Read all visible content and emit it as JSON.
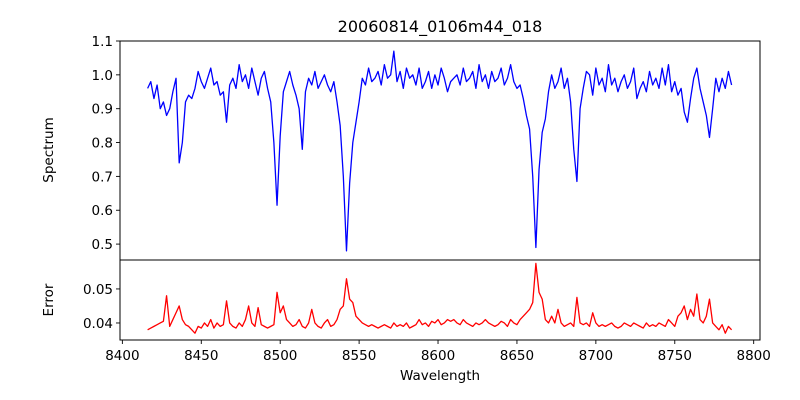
{
  "chart_data": {
    "type": "line",
    "title": "20060814_0106m44_018",
    "xlabel": "Wavelength",
    "xlim": [
      8398.5,
      8804
    ],
    "xticks": [
      8400,
      8450,
      8500,
      8550,
      8600,
      8650,
      8700,
      8750,
      8800
    ],
    "x_start": 8416,
    "x_step": 2,
    "panels": [
      {
        "name": "spectrum",
        "ylabel": "Spectrum",
        "ylim": [
          0.453,
          1.1
        ],
        "yticks": [
          0.5,
          0.6,
          0.7,
          0.8,
          0.9,
          1.0,
          1.1
        ],
        "ytick_labels": [
          "0.5",
          "0.6",
          "0.7",
          "0.8",
          "0.9",
          "1.0",
          "1.1"
        ],
        "color": "#0000ff",
        "values": [
          0.96,
          0.98,
          0.93,
          0.97,
          0.9,
          0.92,
          0.88,
          0.9,
          0.95,
          0.99,
          0.74,
          0.8,
          0.92,
          0.94,
          0.93,
          0.96,
          1.01,
          0.98,
          0.96,
          0.99,
          1.02,
          0.97,
          0.98,
          0.94,
          0.95,
          0.86,
          0.97,
          0.99,
          0.96,
          1.03,
          0.98,
          1.0,
          0.96,
          1.02,
          0.98,
          0.94,
          0.99,
          1.01,
          0.96,
          0.92,
          0.8,
          0.615,
          0.82,
          0.95,
          0.98,
          1.01,
          0.97,
          0.94,
          0.9,
          0.78,
          0.95,
          0.99,
          0.97,
          1.01,
          0.96,
          0.98,
          1.0,
          0.97,
          0.95,
          0.98,
          0.92,
          0.85,
          0.7,
          0.48,
          0.68,
          0.8,
          0.86,
          0.92,
          0.99,
          0.97,
          1.02,
          0.98,
          0.99,
          1.01,
          0.97,
          1.03,
          0.99,
          1.0,
          1.07,
          0.98,
          1.01,
          0.96,
          1.02,
          0.99,
          1.0,
          0.97,
          1.02,
          0.96,
          0.98,
          1.01,
          0.96,
          1.0,
          0.97,
          1.02,
          0.99,
          0.95,
          0.98,
          0.99,
          1.0,
          0.97,
          1.02,
          0.98,
          0.99,
          1.01,
          0.96,
          1.03,
          0.98,
          1.0,
          0.96,
          1.01,
          0.98,
          0.99,
          1.02,
          0.97,
          0.99,
          1.03,
          0.98,
          0.96,
          0.97,
          0.93,
          0.88,
          0.84,
          0.7,
          0.49,
          0.72,
          0.83,
          0.87,
          0.95,
          1.0,
          0.96,
          0.98,
          1.02,
          0.96,
          0.99,
          0.92,
          0.78,
          0.685,
          0.9,
          0.96,
          1.01,
          1.0,
          0.94,
          1.02,
          0.97,
          0.99,
          0.95,
          1.03,
          0.97,
          0.99,
          0.95,
          0.98,
          1.0,
          0.96,
          0.98,
          1.02,
          0.93,
          0.96,
          0.98,
          0.95,
          1.01,
          0.97,
          0.99,
          0.96,
          1.02,
          0.97,
          1.03,
          0.95,
          0.98,
          0.94,
          0.96,
          0.89,
          0.86,
          0.93,
          0.99,
          1.02,
          0.96,
          0.92,
          0.88,
          0.815,
          0.9,
          0.99,
          0.95,
          0.99,
          0.96,
          1.01,
          0.97
        ]
      },
      {
        "name": "error",
        "ylabel": "Error",
        "ylim": [
          0.035,
          0.0585
        ],
        "yticks": [
          0.04,
          0.05
        ],
        "ytick_labels": [
          "0.04",
          "0.05"
        ],
        "color": "#ff0000",
        "values": [
          0.038,
          0.0385,
          0.039,
          0.0395,
          0.04,
          0.0405,
          0.048,
          0.039,
          0.041,
          0.043,
          0.045,
          0.041,
          0.0395,
          0.039,
          0.038,
          0.037,
          0.039,
          0.0385,
          0.04,
          0.039,
          0.041,
          0.0385,
          0.04,
          0.039,
          0.0395,
          0.0465,
          0.04,
          0.039,
          0.0385,
          0.04,
          0.039,
          0.041,
          0.045,
          0.04,
          0.039,
          0.0445,
          0.0395,
          0.039,
          0.0385,
          0.039,
          0.0395,
          0.049,
          0.043,
          0.045,
          0.041,
          0.04,
          0.039,
          0.0395,
          0.041,
          0.039,
          0.0385,
          0.04,
          0.044,
          0.04,
          0.039,
          0.0385,
          0.04,
          0.041,
          0.039,
          0.0395,
          0.041,
          0.044,
          0.045,
          0.053,
          0.047,
          0.046,
          0.042,
          0.041,
          0.04,
          0.0395,
          0.039,
          0.0395,
          0.039,
          0.0385,
          0.039,
          0.0395,
          0.039,
          0.0385,
          0.04,
          0.039,
          0.0395,
          0.039,
          0.04,
          0.0385,
          0.039,
          0.0395,
          0.041,
          0.0395,
          0.04,
          0.039,
          0.0405,
          0.04,
          0.041,
          0.0395,
          0.04,
          0.041,
          0.0405,
          0.041,
          0.04,
          0.0395,
          0.041,
          0.04,
          0.0395,
          0.039,
          0.04,
          0.0395,
          0.04,
          0.041,
          0.04,
          0.0395,
          0.039,
          0.0395,
          0.0405,
          0.04,
          0.039,
          0.041,
          0.04,
          0.0395,
          0.041,
          0.042,
          0.043,
          0.044,
          0.046,
          0.0575,
          0.049,
          0.047,
          0.041,
          0.04,
          0.042,
          0.04,
          0.044,
          0.04,
          0.039,
          0.0395,
          0.04,
          0.039,
          0.0475,
          0.04,
          0.0395,
          0.04,
          0.039,
          0.043,
          0.04,
          0.039,
          0.0395,
          0.039,
          0.0395,
          0.04,
          0.039,
          0.0385,
          0.039,
          0.04,
          0.0395,
          0.039,
          0.04,
          0.0395,
          0.039,
          0.0385,
          0.04,
          0.039,
          0.0395,
          0.039,
          0.04,
          0.0395,
          0.039,
          0.041,
          0.04,
          0.039,
          0.042,
          0.043,
          0.045,
          0.041,
          0.044,
          0.042,
          0.0485,
          0.041,
          0.04,
          0.042,
          0.047,
          0.04,
          0.039,
          0.038,
          0.0395,
          0.037,
          0.039,
          0.038
        ]
      }
    ]
  }
}
